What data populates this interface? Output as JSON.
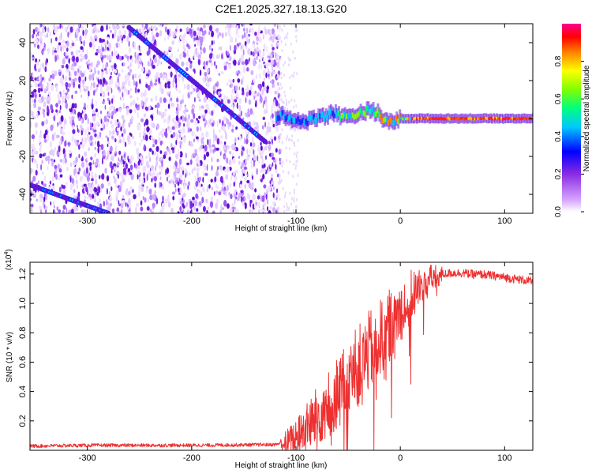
{
  "figure_title": "C2E1.2025.327.18.13.G20",
  "chart_data": [
    {
      "type": "heatmap",
      "name": "spectrogram",
      "xlabel": "Height of straight line (km)",
      "ylabel": "Frequency (Hz)",
      "xlim": [
        -355,
        127
      ],
      "ylim": [
        -50,
        50
      ],
      "xticks": [
        -300,
        -200,
        -100,
        0,
        100
      ],
      "yticks": [
        -40,
        -20,
        0,
        20,
        40
      ],
      "xtick_labels": [
        "-300",
        "-200",
        "-100",
        "0",
        "100"
      ],
      "ytick_labels": [
        "-40",
        "-20",
        "0",
        "20",
        "40"
      ],
      "colorbar": {
        "label": "Normalized spectral amplitude",
        "range": [
          0,
          1
        ],
        "ticks": [
          0.0,
          0.2,
          0.4,
          0.6,
          0.8
        ],
        "tick_labels": [
          "0.0",
          "0.2",
          "0.4",
          "0.6",
          "0.8"
        ],
        "colors": [
          "#ffffff",
          "#d8a8ff",
          "#8a2be2",
          "#0000ff",
          "#00c8ff",
          "#00ff80",
          "#80ff00",
          "#ffff00",
          "#ff8000",
          "#ff0000",
          "#ff0090"
        ]
      },
      "features": {
        "noise_region_x": [
          -355,
          -115
        ],
        "descending_line_1": {
          "x": [
            -260,
            -130
          ],
          "y": [
            48,
            -12
          ]
        },
        "descending_line_2": {
          "x": [
            -355,
            -280
          ],
          "y": [
            -35,
            -50
          ]
        },
        "carrier": {
          "x": [
            -120,
            127
          ],
          "y": [
            0,
            0
          ]
        }
      }
    },
    {
      "type": "line",
      "name": "snr",
      "xlabel": "Height of straight line (km)",
      "ylabel": "SNR (10 * v/v)",
      "scale_label": "(x10",
      "scale_exp": "4",
      "scale_close": ")",
      "xlim": [
        -355,
        127
      ],
      "ylim": [
        0,
        1.28
      ],
      "xticks": [
        -300,
        -200,
        -100,
        0,
        100
      ],
      "yticks": [
        0.2,
        0.4,
        0.6,
        0.8,
        1.0,
        1.2
      ],
      "xtick_labels": [
        "-300",
        "-200",
        "-100",
        "0",
        "100"
      ],
      "ytick_labels": [
        "0.2",
        "0.4",
        "0.6",
        "0.8",
        "1.0",
        "1.2"
      ],
      "color": "#ee3030",
      "series": [
        {
          "name": "SNR",
          "x": [
            -355,
            -300,
            -200,
            -120,
            -110,
            -100,
            -90,
            -80,
            -70,
            -60,
            -50,
            -40,
            -30,
            -20,
            -10,
            0,
            10,
            20,
            30,
            40,
            50,
            60,
            70,
            80,
            90,
            100,
            110,
            120,
            127
          ],
          "values": [
            0.03,
            0.035,
            0.035,
            0.04,
            0.06,
            0.1,
            0.17,
            0.25,
            0.33,
            0.42,
            0.5,
            0.6,
            0.7,
            0.78,
            0.88,
            0.97,
            1.06,
            1.13,
            1.18,
            1.2,
            1.21,
            1.21,
            1.2,
            1.2,
            1.19,
            1.18,
            1.17,
            1.16,
            1.15
          ]
        }
      ]
    }
  ]
}
